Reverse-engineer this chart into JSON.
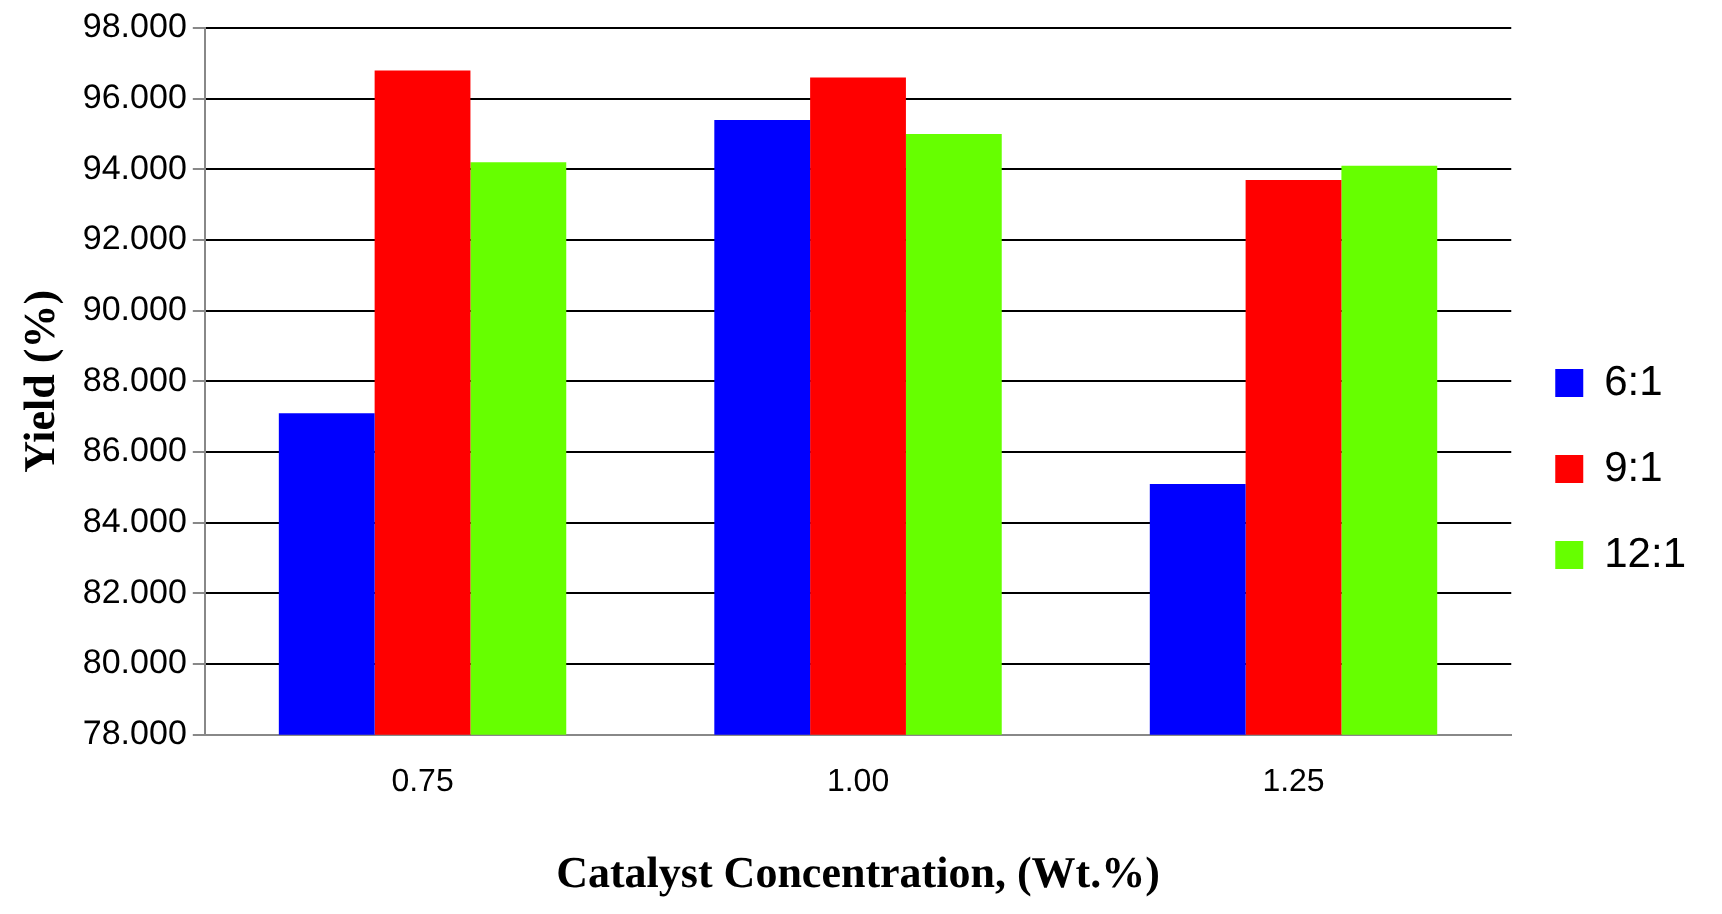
{
  "chart_data": {
    "type": "bar",
    "xlabel": "Catalyst Concentration, (Wt.%)",
    "ylabel": "Yield (%)",
    "categories": [
      "0.75",
      "1.00",
      "1.25"
    ],
    "series": [
      {
        "name": "6:1",
        "color": "#0000ff",
        "values": [
          87.1,
          95.4,
          85.1
        ]
      },
      {
        "name": "9:1",
        "color": "#ff0000",
        "values": [
          96.8,
          96.6,
          93.7
        ]
      },
      {
        "name": "12:1",
        "color": "#66ff00",
        "values": [
          94.2,
          95.0,
          94.1
        ]
      }
    ],
    "ylim": [
      78,
      98
    ],
    "yticks": [
      {
        "value": 78,
        "label": "78.000"
      },
      {
        "value": 80,
        "label": "80.000"
      },
      {
        "value": 82,
        "label": "82.000"
      },
      {
        "value": 84,
        "label": "84.000"
      },
      {
        "value": 86,
        "label": "86.000"
      },
      {
        "value": 88,
        "label": "88.000"
      },
      {
        "value": 90,
        "label": "90.000"
      },
      {
        "value": 92,
        "label": "92.000"
      },
      {
        "value": 94,
        "label": "94.000"
      },
      {
        "value": 96,
        "label": "96.000"
      },
      {
        "value": 98,
        "label": "98.000"
      }
    ],
    "grid": "y",
    "legend": "right"
  }
}
